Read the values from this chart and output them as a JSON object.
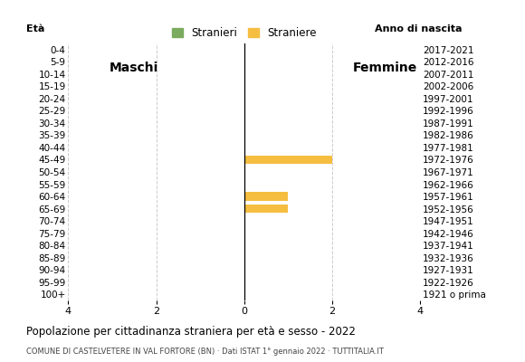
{
  "age_groups": [
    "0-4",
    "5-9",
    "10-14",
    "15-19",
    "20-24",
    "25-29",
    "30-34",
    "35-39",
    "40-44",
    "45-49",
    "50-54",
    "55-59",
    "60-64",
    "65-69",
    "70-74",
    "75-79",
    "80-84",
    "85-89",
    "90-94",
    "95-99",
    "100+"
  ],
  "birth_years": [
    "2017-2021",
    "2012-2016",
    "2007-2011",
    "2002-2006",
    "1997-2001",
    "1992-1996",
    "1987-1991",
    "1982-1986",
    "1977-1981",
    "1972-1976",
    "1967-1971",
    "1962-1966",
    "1957-1961",
    "1952-1956",
    "1947-1951",
    "1942-1946",
    "1937-1941",
    "1932-1936",
    "1927-1931",
    "1922-1926",
    "1921 o prima"
  ],
  "males": [
    0,
    0,
    0,
    0,
    0,
    0,
    0,
    0,
    0,
    0,
    0,
    0,
    0,
    0,
    0,
    0,
    0,
    0,
    0,
    0,
    0
  ],
  "females": [
    0,
    0,
    0,
    0,
    0,
    0,
    0,
    0,
    0,
    2,
    0,
    0,
    1,
    1,
    0,
    0,
    0,
    0,
    0,
    0,
    0
  ],
  "color_males": "#7aab5e",
  "color_females": "#f5be41",
  "xlim": 4,
  "title": "Popolazione per cittadinanza straniera per età e sesso - 2022",
  "subtitle": "COMUNE DI CASTELVETERE IN VAL FORTORE (BN) · Dati ISTAT 1° gennaio 2022 · TUTTITALIA.IT",
  "label_eta": "Età",
  "label_anno": "Anno di nascita",
  "label_maschi": "Maschi",
  "label_femmine": "Femmine",
  "legend_stranieri": "Stranieri",
  "legend_straniere": "Straniere"
}
